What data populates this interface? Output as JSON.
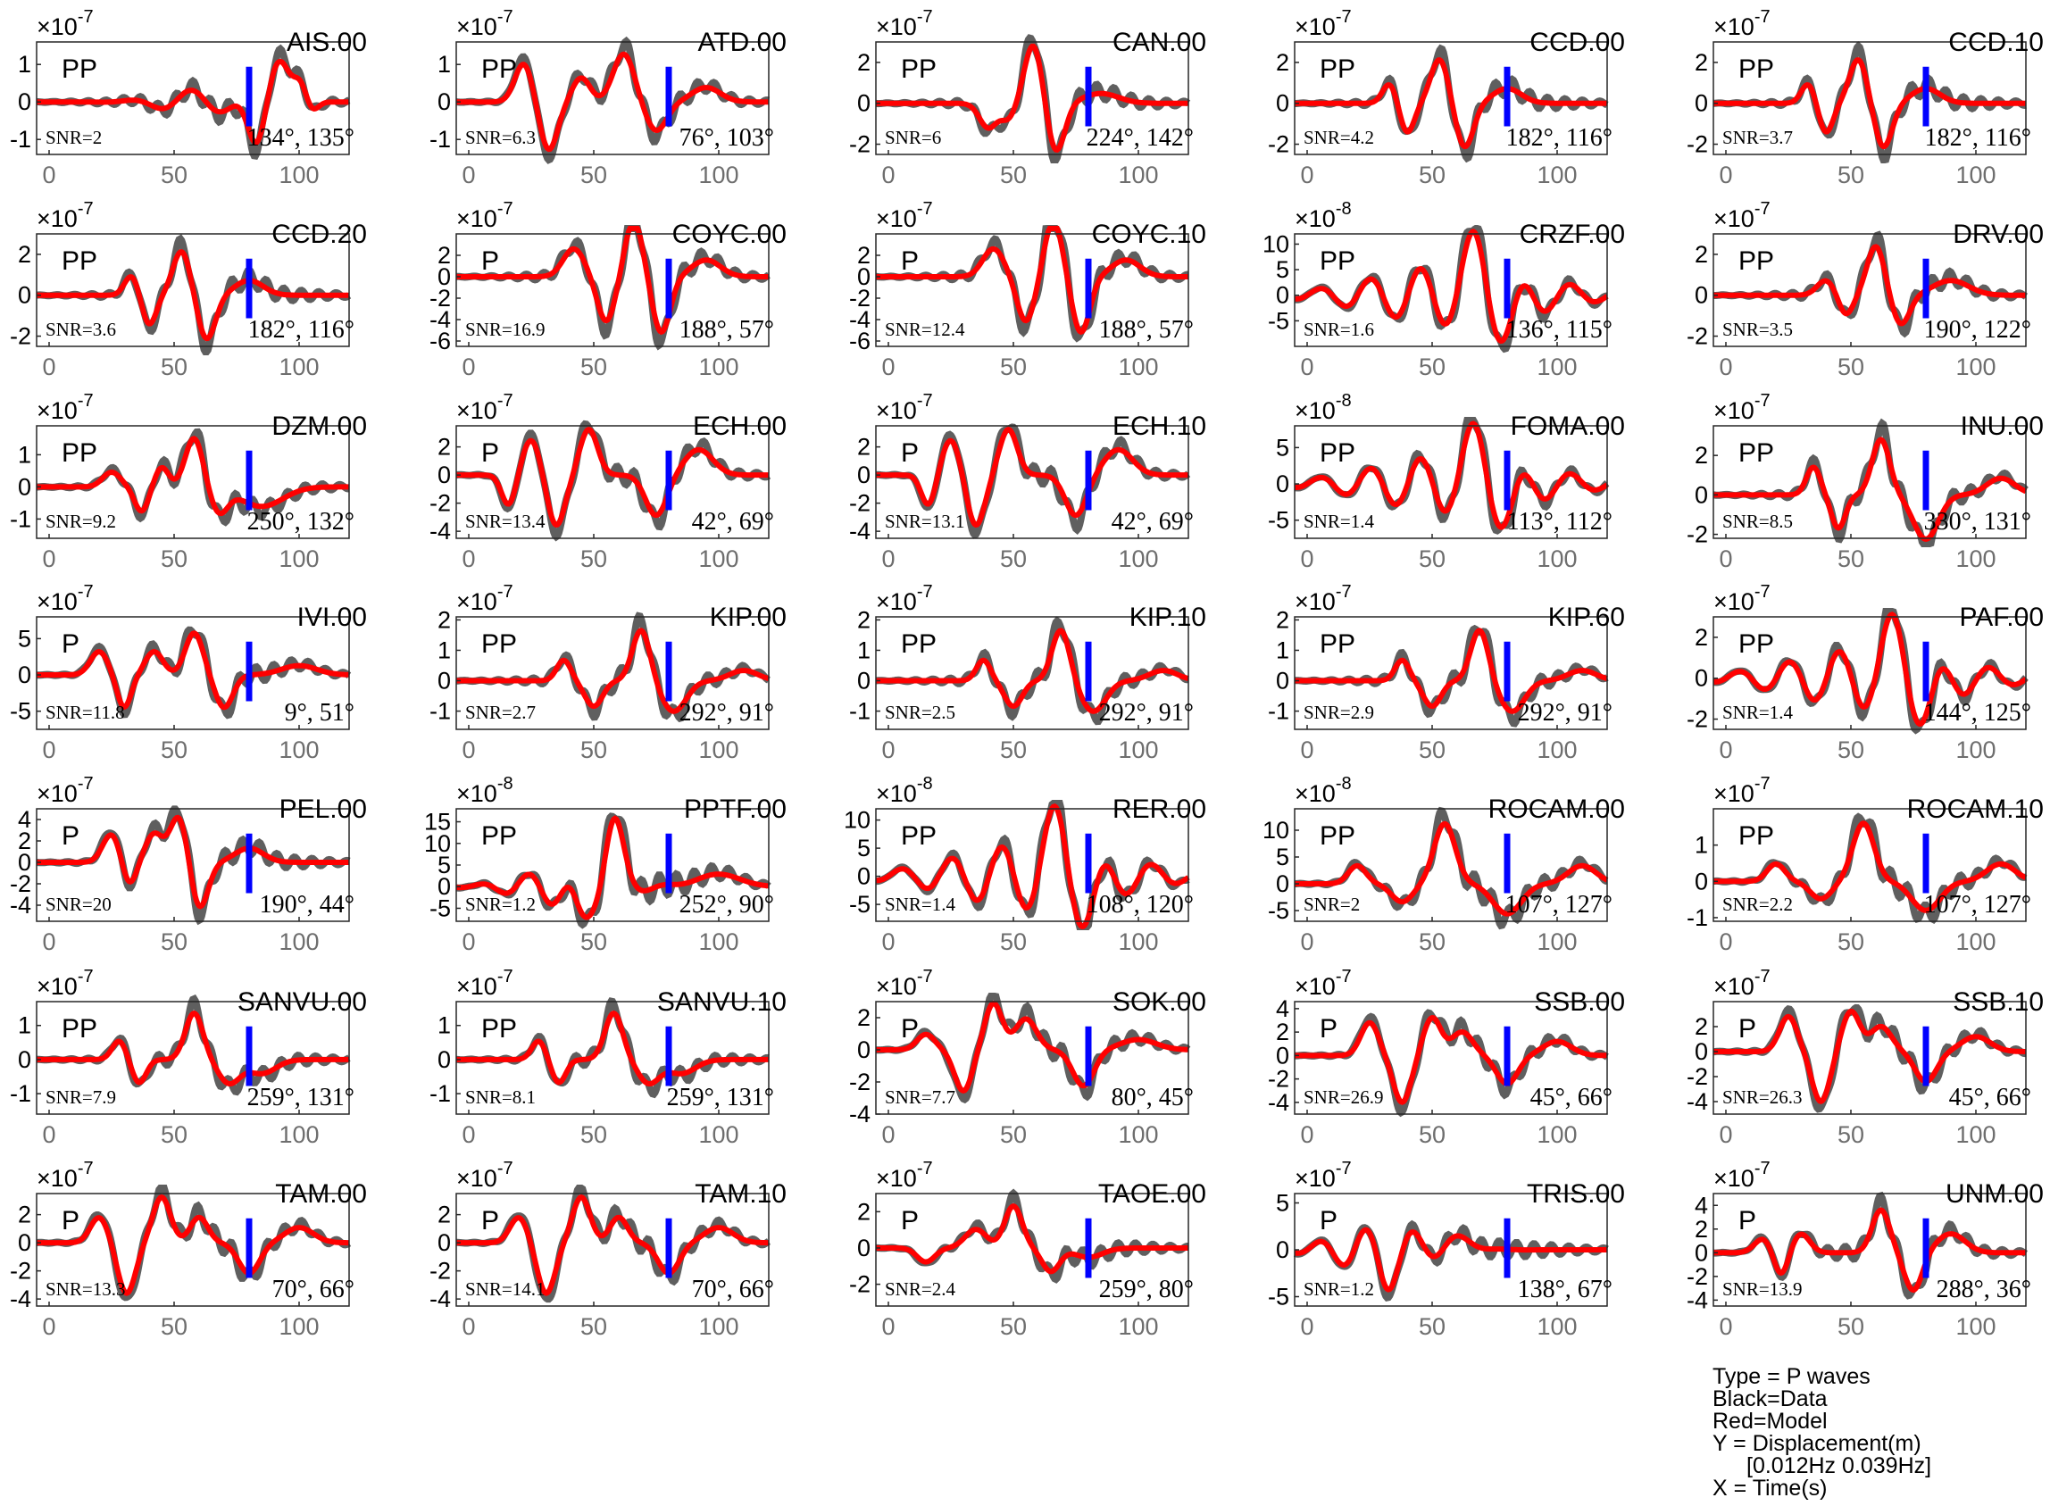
{
  "legend": {
    "type_line": "Type = P waves",
    "black_line": "Black=Data",
    "red_line": "Red=Model",
    "y_line": "Y = Displacement(m)",
    "band_line": "[0.012Hz 0.039Hz]",
    "x_line": "X = Time(s)"
  },
  "colors": {
    "data": "#5f5f5f",
    "model": "#ff0000",
    "marker": "#0000ff"
  },
  "chart_data": {
    "type": "line",
    "xlim": [
      -5,
      120
    ],
    "xticks": [
      0,
      50,
      100
    ],
    "marker_time": 80,
    "series": [
      "Data",
      "Model"
    ],
    "panels": [
      {
        "station": "AIS.00",
        "phase": "PP",
        "snr": "SNR=2",
        "azimuth": "134°, 135°",
        "exp": "-7",
        "ylim": [
          -1.4,
          1.6
        ],
        "yticks": [
          -1,
          0,
          1
        ],
        "shape": "ais"
      },
      {
        "station": "ATD.00",
        "phase": "PP",
        "snr": "SNR=6.3",
        "azimuth": "76°, 103°",
        "exp": "-7",
        "ylim": [
          -1.4,
          1.6
        ],
        "yticks": [
          -1,
          0,
          1
        ],
        "shape": "atd"
      },
      {
        "station": "CAN.00",
        "phase": "PP",
        "snr": "SNR=6",
        "azimuth": "224°, 142°",
        "exp": "-7",
        "ylim": [
          -2.5,
          3
        ],
        "yticks": [
          -2,
          0,
          2
        ],
        "shape": "can"
      },
      {
        "station": "CCD.00",
        "phase": "PP",
        "snr": "SNR=4.2",
        "azimuth": "182°, 116°",
        "exp": "-7",
        "ylim": [
          -2.5,
          3
        ],
        "yticks": [
          -2,
          0,
          2
        ],
        "shape": "ccd"
      },
      {
        "station": "CCD.10",
        "phase": "PP",
        "snr": "SNR=3.7",
        "azimuth": "182°, 116°",
        "exp": "-7",
        "ylim": [
          -2.5,
          3
        ],
        "yticks": [
          -2,
          0,
          2
        ],
        "shape": "ccd"
      },
      {
        "station": "CCD.20",
        "phase": "PP",
        "snr": "SNR=3.6",
        "azimuth": "182°, 116°",
        "exp": "-7",
        "ylim": [
          -2.5,
          3
        ],
        "yticks": [
          -2,
          0,
          2
        ],
        "shape": "ccd"
      },
      {
        "station": "COYC.00",
        "phase": "P",
        "snr": "SNR=16.9",
        "azimuth": "188°, 57°",
        "exp": "-7",
        "ylim": [
          -6.5,
          4
        ],
        "yticks": [
          -6,
          -4,
          -2,
          0,
          2
        ],
        "shape": "coyc"
      },
      {
        "station": "COYC.10",
        "phase": "P",
        "snr": "SNR=12.4",
        "azimuth": "188°, 57°",
        "exp": "-7",
        "ylim": [
          -6.5,
          4
        ],
        "yticks": [
          -6,
          -4,
          -2,
          0,
          2
        ],
        "shape": "coyc"
      },
      {
        "station": "CRZF.00",
        "phase": "PP",
        "snr": "SNR=1.6",
        "azimuth": "136°, 115°",
        "exp": "-8",
        "ylim": [
          -10,
          12
        ],
        "yticks": [
          -5,
          0,
          5,
          10
        ],
        "shape": "noisy"
      },
      {
        "station": "DRV.00",
        "phase": "PP",
        "snr": "SNR=3.5",
        "azimuth": "190°, 122°",
        "exp": "-7",
        "ylim": [
          -2.5,
          3
        ],
        "yticks": [
          -2,
          0,
          2
        ],
        "shape": "drv"
      },
      {
        "station": "DZM.00",
        "phase": "PP",
        "snr": "SNR=9.2",
        "azimuth": "250°, 132°",
        "exp": "-7",
        "ylim": [
          -1.6,
          1.9
        ],
        "yticks": [
          -1,
          0,
          1
        ],
        "shape": "dzm"
      },
      {
        "station": "ECH.00",
        "phase": "P",
        "snr": "SNR=13.4",
        "azimuth": "42°, 69°",
        "exp": "-7",
        "ylim": [
          -4.5,
          3.5
        ],
        "yticks": [
          -4,
          -2,
          0,
          2
        ],
        "shape": "ech"
      },
      {
        "station": "ECH.10",
        "phase": "P",
        "snr": "SNR=13.1",
        "azimuth": "42°, 69°",
        "exp": "-7",
        "ylim": [
          -4.5,
          3.5
        ],
        "yticks": [
          -4,
          -2,
          0,
          2
        ],
        "shape": "ech"
      },
      {
        "station": "FOMA.00",
        "phase": "PP",
        "snr": "SNR=1.4",
        "azimuth": "113°, 112°",
        "exp": "-8",
        "ylim": [
          -7.5,
          8
        ],
        "yticks": [
          -5,
          0,
          5
        ],
        "shape": "noisy"
      },
      {
        "station": "INU.00",
        "phase": "PP",
        "snr": "SNR=8.5",
        "azimuth": "330°, 131°",
        "exp": "-7",
        "ylim": [
          -2.2,
          3.5
        ],
        "yticks": [
          -2,
          0,
          2
        ],
        "shape": "inu"
      },
      {
        "station": "IVI.00",
        "phase": "P",
        "snr": "SNR=11.8",
        "azimuth": "9°, 51°",
        "exp": "-7",
        "ylim": [
          -7.5,
          8
        ],
        "yticks": [
          -5,
          0,
          5
        ],
        "shape": "ivi"
      },
      {
        "station": "KIP.00",
        "phase": "PP",
        "snr": "SNR=2.7",
        "azimuth": "292°, 91°",
        "exp": "-7",
        "ylim": [
          -1.6,
          2.1
        ],
        "yticks": [
          -1,
          0,
          1,
          2
        ],
        "shape": "kip"
      },
      {
        "station": "KIP.10",
        "phase": "PP",
        "snr": "SNR=2.5",
        "azimuth": "292°, 91°",
        "exp": "-7",
        "ylim": [
          -1.6,
          2.1
        ],
        "yticks": [
          -1,
          0,
          1,
          2
        ],
        "shape": "kip"
      },
      {
        "station": "KIP.60",
        "phase": "PP",
        "snr": "SNR=2.9",
        "azimuth": "292°, 91°",
        "exp": "-7",
        "ylim": [
          -1.6,
          2.1
        ],
        "yticks": [
          -1,
          0,
          1,
          2
        ],
        "shape": "kip"
      },
      {
        "station": "PAF.00",
        "phase": "PP",
        "snr": "SNR=1.4",
        "azimuth": "144°, 125°",
        "exp": "-7",
        "ylim": [
          -2.5,
          3
        ],
        "yticks": [
          -2,
          0,
          2
        ],
        "shape": "noisy"
      },
      {
        "station": "PEL.00",
        "phase": "P",
        "snr": "SNR=20",
        "azimuth": "190°, 44°",
        "exp": "-7",
        "ylim": [
          -5.5,
          5
        ],
        "yticks": [
          -4,
          -2,
          0,
          2,
          4
        ],
        "shape": "pel"
      },
      {
        "station": "PPTF.00",
        "phase": "PP",
        "snr": "SNR=1.2",
        "azimuth": "252°, 90°",
        "exp": "-8",
        "ylim": [
          -8,
          18
        ],
        "yticks": [
          -5,
          0,
          5,
          10,
          15
        ],
        "shape": "pptf"
      },
      {
        "station": "RER.00",
        "phase": "PP",
        "snr": "SNR=1.4",
        "azimuth": "108°, 120°",
        "exp": "-8",
        "ylim": [
          -8,
          12
        ],
        "yticks": [
          -5,
          0,
          5,
          10
        ],
        "shape": "noisy"
      },
      {
        "station": "ROCAM.00",
        "phase": "PP",
        "snr": "SNR=2",
        "azimuth": "107°, 127°",
        "exp": "-8",
        "ylim": [
          -7,
          14
        ],
        "yticks": [
          -5,
          0,
          5,
          10
        ],
        "shape": "rocam"
      },
      {
        "station": "ROCAM.10",
        "phase": "PP",
        "snr": "SNR=2.2",
        "azimuth": "107°, 127°",
        "exp": "-7",
        "ylim": [
          -1.1,
          2
        ],
        "yticks": [
          -1,
          0,
          1
        ],
        "shape": "rocam"
      },
      {
        "station": "SANVU.00",
        "phase": "PP",
        "snr": "SNR=7.9",
        "azimuth": "259°, 131°",
        "exp": "-7",
        "ylim": [
          -1.6,
          1.7
        ],
        "yticks": [
          -1,
          0,
          1
        ],
        "shape": "sanvu"
      },
      {
        "station": "SANVU.10",
        "phase": "PP",
        "snr": "SNR=8.1",
        "azimuth": "259°, 131°",
        "exp": "-7",
        "ylim": [
          -1.6,
          1.7
        ],
        "yticks": [
          -1,
          0,
          1
        ],
        "shape": "sanvu"
      },
      {
        "station": "SOK.00",
        "phase": "P",
        "snr": "SNR=7.7",
        "azimuth": "80°, 45°",
        "exp": "-7",
        "ylim": [
          -4,
          3
        ],
        "yticks": [
          -4,
          -2,
          0,
          2
        ],
        "shape": "sok"
      },
      {
        "station": "SSB.00",
        "phase": "P",
        "snr": "SNR=26.9",
        "azimuth": "45°, 66°",
        "exp": "-7",
        "ylim": [
          -5,
          4.6
        ],
        "yticks": [
          -4,
          -2,
          0,
          2,
          4
        ],
        "shape": "ssb"
      },
      {
        "station": "SSB.10",
        "phase": "P",
        "snr": "SNR=26.3",
        "azimuth": "45°, 66°",
        "exp": "-7",
        "ylim": [
          -5,
          4
        ],
        "yticks": [
          -4,
          -2,
          0,
          2
        ],
        "shape": "ssb"
      },
      {
        "station": "TAM.00",
        "phase": "P",
        "snr": "SNR=13.3",
        "azimuth": "70°, 66°",
        "exp": "-7",
        "ylim": [
          -4.5,
          3.5
        ],
        "yticks": [
          -4,
          -2,
          0,
          2
        ],
        "shape": "tam"
      },
      {
        "station": "TAM.10",
        "phase": "P",
        "snr": "SNR=14.1",
        "azimuth": "70°, 66°",
        "exp": "-7",
        "ylim": [
          -4.5,
          3.5
        ],
        "yticks": [
          -4,
          -2,
          0,
          2
        ],
        "shape": "tam"
      },
      {
        "station": "TAOE.00",
        "phase": "P",
        "snr": "SNR=2.4",
        "azimuth": "259°, 80°",
        "exp": "-7",
        "ylim": [
          -3.2,
          3
        ],
        "yticks": [
          -2,
          0,
          2
        ],
        "shape": "taoe"
      },
      {
        "station": "TRIS.00",
        "phase": "P",
        "snr": "SNR=1.2",
        "azimuth": "138°, 67°",
        "exp": "-7",
        "ylim": [
          -6,
          6
        ],
        "yticks": [
          -5,
          0,
          5
        ],
        "shape": "tris"
      },
      {
        "station": "UNM.00",
        "phase": "P",
        "snr": "SNR=13.9",
        "azimuth": "288°, 36°",
        "exp": "-7",
        "ylim": [
          -4.5,
          5
        ],
        "yticks": [
          -4,
          -2,
          0,
          2,
          4
        ],
        "shape": "unm"
      }
    ]
  }
}
